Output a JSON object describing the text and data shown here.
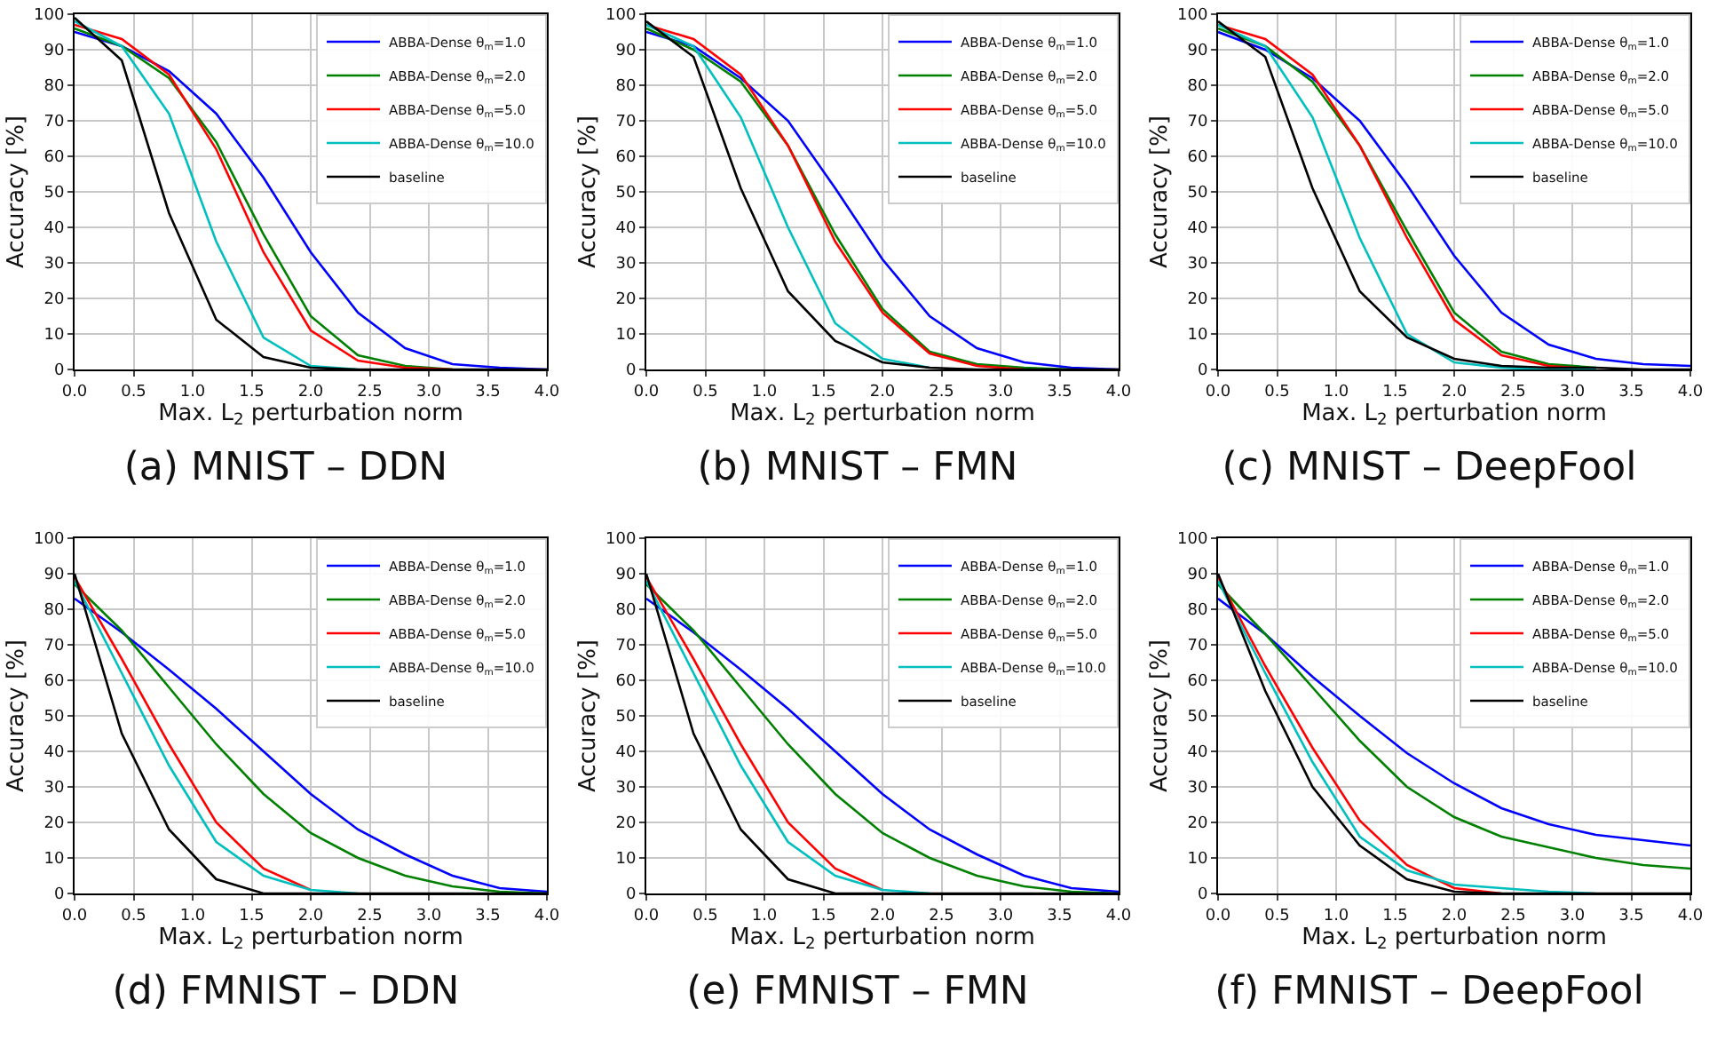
{
  "chart_data": [
    {
      "type": "line",
      "title": "(a) MNIST – DDN",
      "xlabel": "Max. L$_{2}$ perturbation norm",
      "ylabel": "Accuracy [%]",
      "x": [
        0,
        0.4,
        0.8,
        1.2,
        1.6,
        2.0,
        2.4,
        2.8,
        3.2,
        3.6,
        4.0
      ],
      "series": [
        {
          "name": "ABBA-Dense θ$_{m}$=1.0",
          "color": "#0000ff",
          "values": [
            95,
            91,
            84,
            72,
            54,
            33,
            16,
            6,
            1.5,
            0.5,
            0
          ]
        },
        {
          "name": "ABBA-Dense θ$_{m}$=2.0",
          "color": "#008000",
          "values": [
            96,
            91,
            82,
            64,
            38,
            15,
            4,
            1,
            0,
            null,
            null
          ]
        },
        {
          "name": "ABBA-Dense θ$_{m}$=5.0",
          "color": "#ff0000",
          "values": [
            97,
            93,
            83,
            62,
            33,
            11,
            2.5,
            0.5,
            0,
            null,
            null
          ]
        },
        {
          "name": "ABBA-Dense θ$_{m}$=10.0",
          "color": "#00bfbf",
          "values": [
            98,
            91,
            72,
            36,
            9,
            1,
            0,
            null,
            null,
            null,
            null
          ]
        },
        {
          "name": "baseline",
          "color": "#000000",
          "values": [
            99,
            87,
            44,
            14,
            3.5,
            0.5,
            0,
            0,
            0,
            0,
            0
          ]
        }
      ],
      "xlim": [
        0,
        4
      ],
      "ylim": [
        0,
        100
      ],
      "xticks": [
        {
          "value": 0,
          "label": "0.0"
        },
        {
          "value": 0.5,
          "label": "0.5"
        },
        {
          "value": 1,
          "label": "1.0"
        },
        {
          "value": 1.5,
          "label": "1.5"
        },
        {
          "value": 2,
          "label": "2.0"
        },
        {
          "value": 2.5,
          "label": "2.5"
        },
        {
          "value": 3,
          "label": "3.0"
        },
        {
          "value": 3.5,
          "label": "3.5"
        },
        {
          "value": 4,
          "label": "4.0"
        }
      ],
      "yticks": [
        0,
        10,
        20,
        30,
        40,
        50,
        60,
        70,
        80,
        90,
        100
      ],
      "grid": true,
      "legend": "top right",
      "marker": "none",
      "line_style": "solid"
    },
    {
      "type": "line",
      "title": "(b) MNIST – FMN",
      "xlabel": "Max. L$_{2}$ perturbation norm",
      "ylabel": "Accuracy [%]",
      "x": [
        0,
        0.4,
        0.8,
        1.2,
        1.6,
        2.0,
        2.4,
        2.8,
        3.2,
        3.6,
        4.0
      ],
      "series": [
        {
          "name": "ABBA-Dense θ$_{m}$=1.0",
          "color": "#0000ff",
          "values": [
            95,
            91,
            82,
            70,
            51,
            31,
            15,
            6,
            2,
            0.5,
            0
          ]
        },
        {
          "name": "ABBA-Dense θ$_{m}$=2.0",
          "color": "#008000",
          "values": [
            96,
            90,
            81,
            63,
            38,
            17,
            5,
            1.5,
            0.5,
            0,
            null
          ]
        },
        {
          "name": "ABBA-Dense θ$_{m}$=5.0",
          "color": "#ff0000",
          "values": [
            97,
            93,
            83,
            63,
            36,
            16,
            4.5,
            1,
            0,
            null,
            null
          ]
        },
        {
          "name": "ABBA-Dense θ$_{m}$=10.0",
          "color": "#00bfbf",
          "values": [
            97,
            91,
            71,
            40,
            13,
            3,
            0.5,
            null,
            null,
            null,
            null
          ]
        },
        {
          "name": "baseline",
          "color": "#000000",
          "values": [
            98,
            88,
            51,
            22,
            8,
            2,
            0.5,
            0,
            0,
            0,
            0
          ]
        }
      ],
      "xlim": [
        0,
        4
      ],
      "ylim": [
        0,
        100
      ],
      "xticks": [
        {
          "value": 0,
          "label": "0.0"
        },
        {
          "value": 0.5,
          "label": "0.5"
        },
        {
          "value": 1,
          "label": "1.0"
        },
        {
          "value": 1.5,
          "label": "1.5"
        },
        {
          "value": 2,
          "label": "2.0"
        },
        {
          "value": 2.5,
          "label": "2.5"
        },
        {
          "value": 3,
          "label": "3.0"
        },
        {
          "value": 3.5,
          "label": "3.5"
        },
        {
          "value": 4,
          "label": "4.0"
        }
      ],
      "yticks": [
        0,
        10,
        20,
        30,
        40,
        50,
        60,
        70,
        80,
        90,
        100
      ],
      "grid": true,
      "legend": "top right",
      "marker": "none",
      "line_style": "solid"
    },
    {
      "type": "line",
      "title": "(c) MNIST – DeepFool",
      "xlabel": "Max. L$_{2}$ perturbation norm",
      "ylabel": "Accuracy [%]",
      "x": [
        0,
        0.4,
        0.8,
        1.2,
        1.6,
        2.0,
        2.4,
        2.8,
        3.2,
        3.6,
        4.0
      ],
      "series": [
        {
          "name": "ABBA-Dense θ$_{m}$=1.0",
          "color": "#0000ff",
          "values": [
            95,
            90,
            82,
            70,
            52,
            32,
            16,
            7,
            3,
            1.5,
            1
          ]
        },
        {
          "name": "ABBA-Dense θ$_{m}$=2.0",
          "color": "#008000",
          "values": [
            96,
            91,
            81,
            63,
            39,
            16,
            5,
            1.5,
            0.5,
            null,
            null
          ]
        },
        {
          "name": "ABBA-Dense θ$_{m}$=5.0",
          "color": "#ff0000",
          "values": [
            97,
            93,
            83,
            63,
            37,
            14,
            4,
            1,
            0,
            null,
            null
          ]
        },
        {
          "name": "ABBA-Dense θ$_{m}$=10.0",
          "color": "#00bfbf",
          "values": [
            97,
            91,
            71,
            37,
            10,
            2,
            0.5,
            0,
            0,
            null,
            null
          ]
        },
        {
          "name": "baseline",
          "color": "#000000",
          "values": [
            98,
            88,
            51,
            22,
            9,
            3,
            1,
            0.5,
            0.5,
            0,
            0
          ]
        }
      ],
      "xlim": [
        0,
        4
      ],
      "ylim": [
        0,
        100
      ],
      "xticks": [
        {
          "value": 0,
          "label": "0.0"
        },
        {
          "value": 0.5,
          "label": "0.5"
        },
        {
          "value": 1,
          "label": "1.0"
        },
        {
          "value": 1.5,
          "label": "1.5"
        },
        {
          "value": 2,
          "label": "2.0"
        },
        {
          "value": 2.5,
          "label": "2.5"
        },
        {
          "value": 3,
          "label": "3.0"
        },
        {
          "value": 3.5,
          "label": "3.5"
        },
        {
          "value": 4,
          "label": "4.0"
        }
      ],
      "yticks": [
        0,
        10,
        20,
        30,
        40,
        50,
        60,
        70,
        80,
        90,
        100
      ],
      "grid": true,
      "legend": "top right",
      "marker": "none",
      "line_style": "solid"
    },
    {
      "type": "line",
      "title": "(d) FMNIST – DDN",
      "xlabel": "Max. L$_{2}$ perturbation norm",
      "ylabel": "Accuracy [%]",
      "x": [
        0,
        0.4,
        0.8,
        1.2,
        1.6,
        2.0,
        2.4,
        2.8,
        3.2,
        3.6,
        4.0
      ],
      "series": [
        {
          "name": "ABBA-Dense θ$_{m}$=1.0",
          "color": "#0000ff",
          "values": [
            83,
            73.5,
            63,
            52,
            40,
            28,
            18,
            11,
            5,
            1.5,
            0.5
          ]
        },
        {
          "name": "ABBA-Dense θ$_{m}$=2.0",
          "color": "#008000",
          "values": [
            87,
            74,
            58,
            42,
            28,
            17,
            10,
            5,
            2,
            0.5,
            0
          ]
        },
        {
          "name": "ABBA-Dense θ$_{m}$=5.0",
          "color": "#ff0000",
          "values": [
            89,
            66,
            42,
            20,
            7,
            1,
            null,
            null,
            null,
            null,
            null
          ]
        },
        {
          "name": "ABBA-Dense θ$_{m}$=10.0",
          "color": "#00bfbf",
          "values": [
            88,
            62,
            36,
            14.5,
            5,
            1,
            0,
            null,
            null,
            null,
            null
          ]
        },
        {
          "name": "baseline",
          "color": "#000000",
          "values": [
            90,
            45,
            18,
            4,
            0,
            0,
            0,
            0,
            0,
            0,
            0
          ]
        }
      ],
      "xlim": [
        0,
        4
      ],
      "ylim": [
        0,
        100
      ],
      "xticks": [
        {
          "value": 0,
          "label": "0.0"
        },
        {
          "value": 0.5,
          "label": "0.5"
        },
        {
          "value": 1,
          "label": "1.0"
        },
        {
          "value": 1.5,
          "label": "1.5"
        },
        {
          "value": 2,
          "label": "2.0"
        },
        {
          "value": 2.5,
          "label": "2.5"
        },
        {
          "value": 3,
          "label": "3.0"
        },
        {
          "value": 3.5,
          "label": "3.5"
        },
        {
          "value": 4,
          "label": "4.0"
        }
      ],
      "yticks": [
        0,
        10,
        20,
        30,
        40,
        50,
        60,
        70,
        80,
        90,
        100
      ],
      "grid": true,
      "legend": "top right",
      "marker": "none",
      "line_style": "solid"
    },
    {
      "type": "line",
      "title": "(e) FMNIST – FMN",
      "xlabel": "Max. L$_{2}$ perturbation norm",
      "ylabel": "Accuracy [%]",
      "x": [
        0,
        0.4,
        0.8,
        1.2,
        1.6,
        2.0,
        2.4,
        2.8,
        3.2,
        3.6,
        4.0
      ],
      "series": [
        {
          "name": "ABBA-Dense θ$_{m}$=1.0",
          "color": "#0000ff",
          "values": [
            83,
            73.5,
            63,
            52,
            40,
            28,
            18,
            11,
            5,
            1.5,
            0.5
          ]
        },
        {
          "name": "ABBA-Dense θ$_{m}$=2.0",
          "color": "#008000",
          "values": [
            87,
            74,
            58,
            42,
            28,
            17,
            10,
            5,
            2,
            0.5,
            0
          ]
        },
        {
          "name": "ABBA-Dense θ$_{m}$=5.0",
          "color": "#ff0000",
          "values": [
            89,
            66,
            42,
            20,
            7,
            1,
            null,
            null,
            null,
            null,
            null
          ]
        },
        {
          "name": "ABBA-Dense θ$_{m}$=10.0",
          "color": "#00bfbf",
          "values": [
            88,
            62,
            36,
            14.5,
            5,
            1,
            0,
            null,
            null,
            null,
            null
          ]
        },
        {
          "name": "baseline",
          "color": "#000000",
          "values": [
            90,
            45,
            18,
            4,
            0,
            0,
            0,
            0,
            0,
            0,
            0
          ]
        }
      ],
      "xlim": [
        0,
        4
      ],
      "ylim": [
        0,
        100
      ],
      "xticks": [
        {
          "value": 0,
          "label": "0.0"
        },
        {
          "value": 0.5,
          "label": "0.5"
        },
        {
          "value": 1,
          "label": "1.0"
        },
        {
          "value": 1.5,
          "label": "1.5"
        },
        {
          "value": 2,
          "label": "2.0"
        },
        {
          "value": 2.5,
          "label": "2.5"
        },
        {
          "value": 3,
          "label": "3.0"
        },
        {
          "value": 3.5,
          "label": "3.5"
        },
        {
          "value": 4,
          "label": "4.0"
        }
      ],
      "yticks": [
        0,
        10,
        20,
        30,
        40,
        50,
        60,
        70,
        80,
        90,
        100
      ],
      "grid": true,
      "legend": "top right",
      "marker": "none",
      "line_style": "solid"
    },
    {
      "type": "line",
      "title": "(f) FMNIST – DeepFool",
      "xlabel": "Max. L$_{2}$ perturbation norm",
      "ylabel": "Accuracy [%]",
      "x": [
        0,
        0.4,
        0.8,
        1.2,
        1.6,
        2.0,
        2.4,
        2.8,
        3.2,
        3.6,
        4.0
      ],
      "series": [
        {
          "name": "ABBA-Dense θ$_{m}$=1.0",
          "color": "#0000ff",
          "values": [
            83,
            73,
            61,
            50,
            39.5,
            31,
            24,
            19.5,
            16.5,
            15,
            13.5
          ]
        },
        {
          "name": "ABBA-Dense θ$_{m}$=2.0",
          "color": "#008000",
          "values": [
            87,
            73,
            58,
            43,
            30,
            21.5,
            16,
            13,
            10,
            8,
            7
          ]
        },
        {
          "name": "ABBA-Dense θ$_{m}$=5.0",
          "color": "#ff0000",
          "values": [
            89,
            64,
            41,
            20.5,
            8,
            1.5,
            0,
            null,
            null,
            null,
            null
          ]
        },
        {
          "name": "ABBA-Dense θ$_{m}$=10.0",
          "color": "#00bfbf",
          "values": [
            88,
            62,
            37,
            16,
            6.5,
            2.5,
            1.5,
            0.5,
            0,
            null,
            null
          ]
        },
        {
          "name": "baseline",
          "color": "#000000",
          "values": [
            90,
            57,
            30,
            13.5,
            4,
            0.5,
            0,
            0,
            0,
            0,
            0
          ]
        }
      ],
      "xlim": [
        0,
        4
      ],
      "ylim": [
        0,
        100
      ],
      "xticks": [
        {
          "value": 0,
          "label": "0.0"
        },
        {
          "value": 0.5,
          "label": "0.5"
        },
        {
          "value": 1,
          "label": "1.0"
        },
        {
          "value": 1.5,
          "label": "1.5"
        },
        {
          "value": 2,
          "label": "2.0"
        },
        {
          "value": 2.5,
          "label": "2.5"
        },
        {
          "value": 3,
          "label": "3.0"
        },
        {
          "value": 3.5,
          "label": "3.5"
        },
        {
          "value": 4,
          "label": "4.0"
        }
      ],
      "yticks": [
        0,
        10,
        20,
        30,
        40,
        50,
        60,
        70,
        80,
        90,
        100
      ],
      "grid": true,
      "legend": "top right",
      "marker": "none",
      "line_style": "solid"
    }
  ]
}
